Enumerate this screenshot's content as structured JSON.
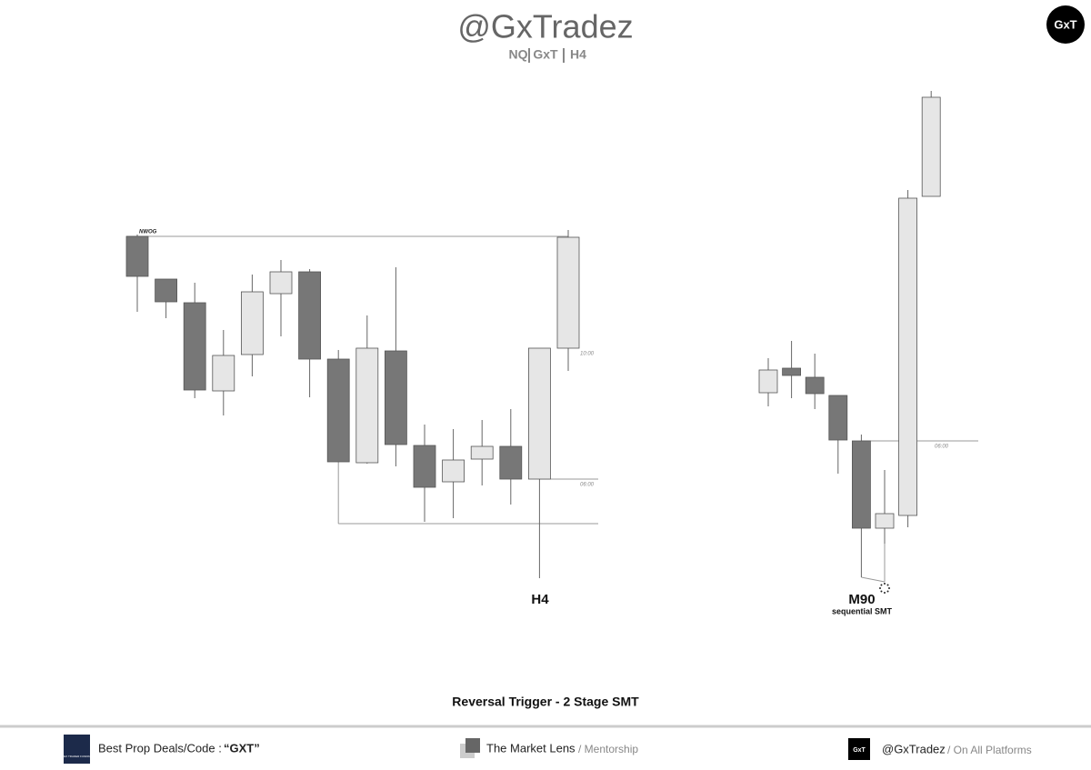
{
  "header": {
    "title": "@GxTradez",
    "subtitle": [
      "NQ",
      "GxT",
      "H4"
    ],
    "logo": "GxT"
  },
  "chart_data": [
    {
      "type": "candlestick",
      "title": "H4",
      "annotations": [
        "NWOG",
        "10:00",
        "06:00"
      ],
      "open": [
        440,
        393,
        367,
        270,
        310,
        377,
        401,
        305,
        191,
        314,
        210,
        170,
        195,
        209,
        173,
        317
      ],
      "high": [
        442,
        393,
        389,
        337,
        398,
        414,
        404,
        315,
        353,
        406,
        233,
        228,
        238,
        250,
        317,
        447
      ],
      "low": [
        357,
        350,
        262,
        243,
        286,
        330,
        263,
        192,
        190,
        187,
        126,
        130,
        166,
        145,
        64,
        292
      ],
      "close": [
        396,
        368,
        271,
        309,
        379,
        401,
        305,
        192,
        317,
        211,
        164,
        194,
        209,
        173,
        317,
        439
      ],
      "up_color": "#e6e6e6",
      "down_color": "#777777",
      "ylim": [
        40,
        660
      ]
    },
    {
      "type": "candlestick",
      "title": "M90",
      "subtitle": "sequential SMT",
      "annotations": [
        "06:00"
      ],
      "open": [
        268,
        295,
        285,
        265,
        215,
        119,
        133,
        484
      ],
      "high": [
        306,
        325,
        311,
        265,
        222,
        183,
        491,
        600
      ],
      "low": [
        253,
        262,
        250,
        179,
        65,
        102,
        120,
        484
      ],
      "close": [
        293,
        287,
        267,
        216,
        119,
        135,
        482,
        593
      ],
      "up_color": "#e6e6e6",
      "down_color": "#777777",
      "ylim": [
        40,
        660
      ]
    }
  ],
  "caption": "Reversal Trigger - 2 Stage SMT",
  "footer": {
    "left": {
      "logo": "APEX TRADER FUNDING",
      "label": "Best Prop Deals/Code :",
      "code": "“GXT”"
    },
    "middle": {
      "name": "The Market Lens",
      "suffix": "/ Mentorship"
    },
    "right": {
      "logo": "GxT",
      "handle": "@GxTradez",
      "suffix": "/ On All Platforms"
    }
  }
}
